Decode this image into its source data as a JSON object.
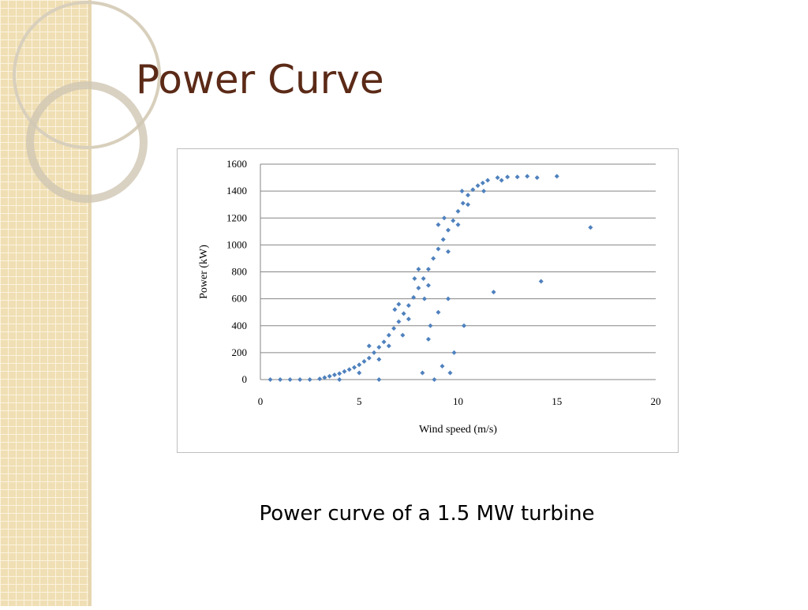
{
  "slide_title": "Power Curve",
  "caption": "Power curve of a 1.5 MW turbine",
  "chart_data": {
    "type": "scatter",
    "x_label": "Wind speed (m/s)",
    "y_label": "Power (kW)",
    "xlim": [
      0,
      20
    ],
    "xticks": [
      0,
      5,
      10,
      15,
      20
    ],
    "ylim": [
      0,
      1600
    ],
    "yticks": [
      0,
      200,
      400,
      600,
      800,
      1000,
      1200,
      1400,
      1600
    ],
    "grid": true,
    "series": [
      {
        "color": "#4f81bd",
        "x": [
          0.5,
          1,
          1.5,
          2,
          2.5,
          3,
          3.25,
          3.5,
          3.75,
          4,
          4.25,
          4.5,
          4.75,
          5,
          5.25,
          5.5,
          5.75,
          6,
          6.25,
          6.5,
          6.75,
          7,
          7.25,
          7.5,
          7.75,
          8,
          8.25,
          8.5,
          8.75,
          9,
          9.25,
          9.5,
          9.75,
          10,
          10.25,
          10.5,
          10.75,
          11,
          11.25,
          11.5,
          12,
          12.5,
          13,
          6.5,
          7,
          7.5,
          8,
          8.5,
          9,
          9.5,
          10,
          10.5,
          5.5,
          6,
          4,
          5,
          7.2,
          7.8,
          8.3,
          9.3,
          10.2,
          11.3,
          12.2,
          6.8,
          16.7,
          14.2,
          11.8,
          9.5,
          9,
          8.5,
          9.8,
          9.2,
          8.2,
          6,
          8.8,
          10.3,
          15,
          14,
          13.5,
          9.6,
          8.6
        ],
        "y": [
          0,
          0,
          0,
          0,
          0,
          5,
          15,
          25,
          35,
          45,
          60,
          75,
          90,
          110,
          135,
          160,
          200,
          240,
          280,
          330,
          380,
          430,
          490,
          550,
          610,
          680,
          750,
          820,
          900,
          970,
          1040,
          1110,
          1180,
          1250,
          1310,
          1370,
          1410,
          1440,
          1460,
          1480,
          1500,
          1505,
          1505,
          250,
          560,
          450,
          820,
          700,
          1150,
          950,
          1150,
          1300,
          250,
          150,
          0,
          50,
          330,
          750,
          600,
          1200,
          1400,
          1400,
          1480,
          520,
          1130,
          730,
          650,
          600,
          500,
          300,
          200,
          100,
          50,
          0,
          0,
          400,
          1510,
          1500,
          1510,
          50,
          400
        ]
      }
    ]
  }
}
